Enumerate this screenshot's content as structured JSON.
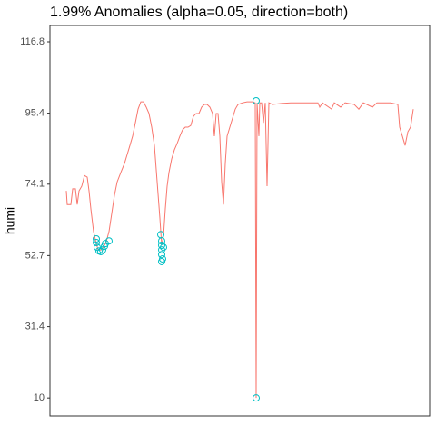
{
  "chart_data": {
    "type": "line",
    "title": "1.99% Anomalies (alpha=0.05, direction=both)",
    "y_label": "humi",
    "xlim": [
      55,
      473
    ],
    "ylim": [
      4.6,
      121.7
    ],
    "yticks": [
      10,
      31.4,
      52.7,
      74.1,
      95.4,
      116.8
    ],
    "grid": false,
    "series": [
      {
        "color": "#F8766D",
        "x": [
          73,
          74,
          78,
          80,
          83,
          85,
          87,
          90,
          93,
          96,
          98,
          100,
          103,
          106,
          108,
          111,
          114,
          117,
          120,
          123,
          126,
          129,
          133,
          137,
          140,
          143,
          146,
          149,
          152,
          155,
          158,
          161,
          164,
          167,
          170,
          173,
          176,
          178,
          180,
          182,
          184,
          186,
          189,
          192,
          195,
          198,
          201,
          204,
          207,
          210,
          213,
          216,
          219,
          222,
          225,
          228,
          231,
          234,
          236,
          238,
          240,
          242,
          244,
          246,
          248,
          250,
          253,
          256,
          259,
          262,
          267,
          272,
          278,
          281,
          282,
          283,
          285,
          286,
          288,
          290,
          292,
          294,
          296,
          300,
          310,
          320,
          340,
          350,
          352,
          355,
          365,
          368,
          375,
          380,
          390,
          395,
          400,
          410,
          415,
          420,
          430,
          438,
          440,
          443,
          446,
          449,
          452,
          455
        ],
        "values": [
          72.1,
          68.0,
          68.0,
          72.7,
          72.7,
          68.0,
          72.1,
          73.5,
          76.7,
          76.2,
          72.1,
          66.7,
          59.9,
          56.3,
          54.4,
          54.4,
          55.2,
          56.9,
          59.9,
          65.3,
          70.8,
          74.8,
          77.6,
          80.3,
          83.0,
          85.7,
          88.5,
          92.5,
          96.6,
          98.8,
          98.8,
          97.2,
          95.3,
          91.2,
          85.7,
          74.8,
          63.9,
          55.8,
          58.5,
          66.7,
          73.5,
          77.6,
          81.7,
          84.4,
          86.3,
          88.5,
          90.4,
          91.2,
          91.2,
          91.7,
          94.5,
          95.3,
          95.3,
          97.2,
          98.0,
          98.0,
          97.2,
          95.3,
          88.5,
          95.3,
          95.3,
          88.5,
          74.8,
          68.0,
          80.3,
          88.5,
          91.2,
          93.9,
          96.6,
          98.0,
          98.5,
          98.8,
          98.8,
          98.5,
          10.0,
          98.5,
          88.5,
          98.5,
          98.5,
          92.5,
          98.5,
          73.5,
          98.5,
          98.0,
          98.3,
          98.5,
          98.5,
          98.5,
          97.2,
          98.5,
          96.6,
          98.5,
          97.2,
          98.5,
          98.0,
          96.6,
          98.5,
          97.2,
          98.5,
          98.5,
          98.5,
          98.0,
          91.2,
          88.5,
          85.7,
          89.8,
          91.2,
          96.6
        ]
      }
    ],
    "anomalies": {
      "color": "#00BFC4",
      "x": [
        106,
        106,
        107,
        109,
        111,
        113,
        115,
        116,
        120,
        177,
        178,
        178,
        178,
        178,
        179,
        178,
        180,
        282,
        282
      ],
      "values": [
        57.7,
        56.6,
        55.2,
        54.1,
        53.9,
        54.4,
        55.5,
        56.3,
        57.1,
        59.0,
        57.1,
        55.8,
        54.4,
        53.0,
        51.7,
        50.9,
        55.2,
        99.1,
        10.0
      ]
    }
  }
}
